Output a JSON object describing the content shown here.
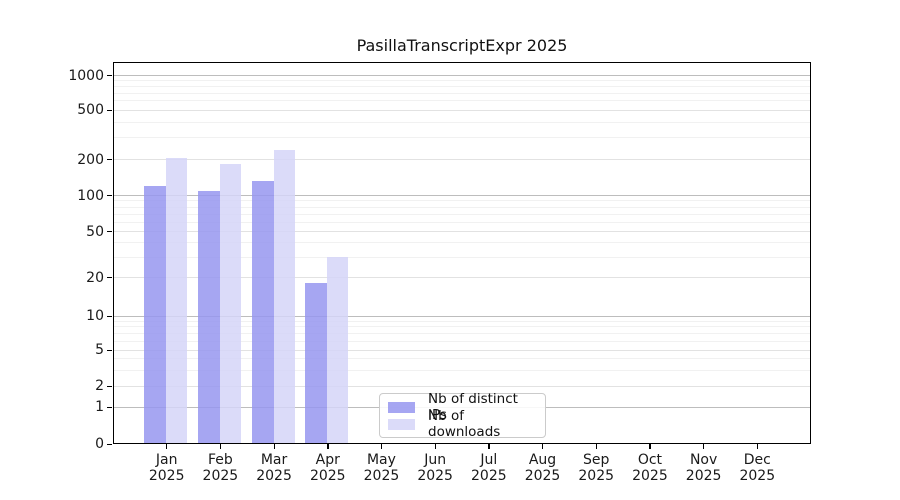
{
  "chart_data": {
    "type": "bar",
    "title": "PasillaTranscriptExpr 2025",
    "categories": [
      {
        "month": "Jan",
        "year": "2025"
      },
      {
        "month": "Feb",
        "year": "2025"
      },
      {
        "month": "Mar",
        "year": "2025"
      },
      {
        "month": "Apr",
        "year": "2025"
      },
      {
        "month": "May",
        "year": "2025"
      },
      {
        "month": "Jun",
        "year": "2025"
      },
      {
        "month": "Jul",
        "year": "2025"
      },
      {
        "month": "Aug",
        "year": "2025"
      },
      {
        "month": "Sep",
        "year": "2025"
      },
      {
        "month": "Oct",
        "year": "2025"
      },
      {
        "month": "Nov",
        "year": "2025"
      },
      {
        "month": "Dec",
        "year": "2025"
      }
    ],
    "series": [
      {
        "key": "distinct-ips",
        "name": "Nb of distinct IPs",
        "color": "rgba(150,150,240,0.85)",
        "values": [
          120,
          108,
          130,
          18,
          0,
          0,
          0,
          0,
          0,
          0,
          0,
          0
        ]
      },
      {
        "key": "downloads",
        "name": "Nb of downloads",
        "color": "rgba(213,213,248,0.85)",
        "values": [
          205,
          180,
          238,
          30,
          0,
          0,
          0,
          0,
          0,
          0,
          0,
          0
        ]
      }
    ],
    "y_axis": {
      "scale": "log-like",
      "ticks": [
        0,
        1,
        2,
        5,
        10,
        20,
        50,
        100,
        200,
        500,
        1000
      ],
      "major_gridlines": [
        1,
        10,
        100,
        1000
      ],
      "mid_gridlines": [
        2,
        5,
        20,
        50,
        200,
        500
      ],
      "minor_gridlines": [
        3,
        4,
        6,
        7,
        8,
        9,
        30,
        40,
        60,
        70,
        80,
        90,
        300,
        400,
        600,
        700,
        800,
        900
      ],
      "range": [
        0,
        1000
      ]
    },
    "grid": true,
    "legend_position": "inside-bottom-center"
  }
}
